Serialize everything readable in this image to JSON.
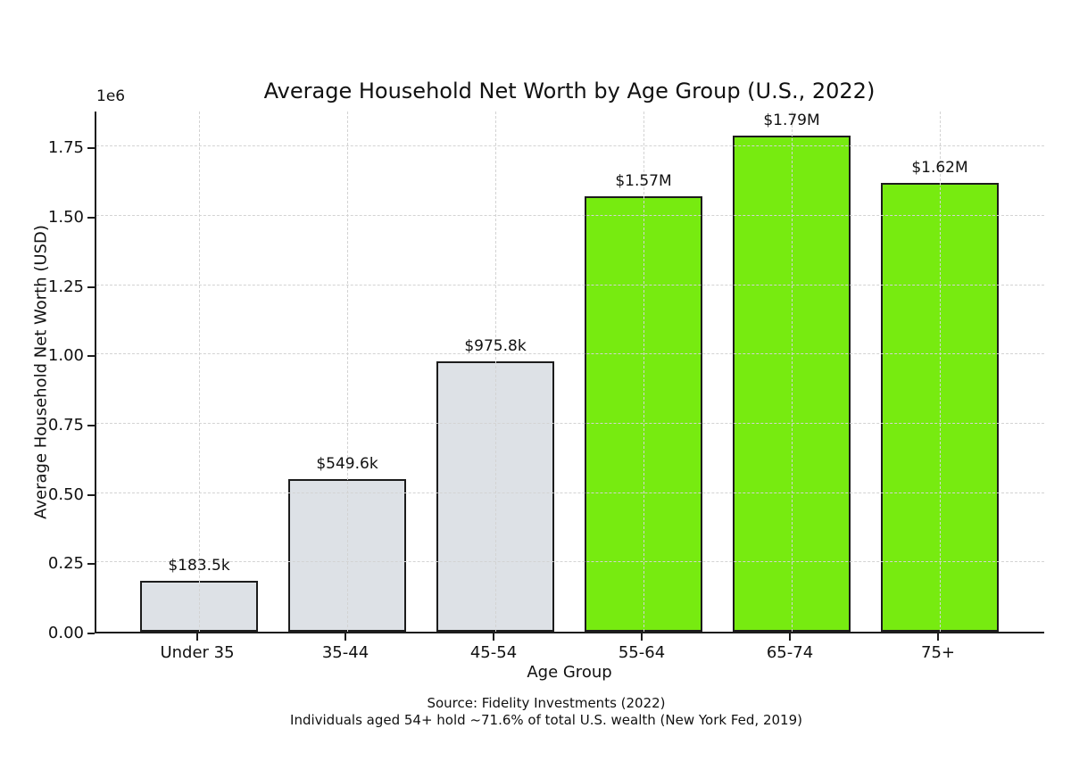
{
  "chart_data": {
    "type": "bar",
    "title": "Average Household Net Worth by Age Group (U.S., 2022)",
    "xlabel": "Age Group",
    "ylabel": "Average Household Net Worth (USD)",
    "y_offset_text": "1e6",
    "categories": [
      "Under 35",
      "35-44",
      "45-54",
      "55-64",
      "65-74",
      "75+"
    ],
    "values": [
      183500,
      549600,
      975800,
      1570000,
      1790000,
      1620000
    ],
    "bar_labels": [
      "$183.5k",
      "$549.6k",
      "$975.8k",
      "$1.57M",
      "$1.79M",
      "$1.62M"
    ],
    "bar_colors": [
      "#dde1e6",
      "#dde1e6",
      "#dde1e6",
      "#77eb10",
      "#77eb10",
      "#77eb10"
    ],
    "edge_color": "#1c1c1c",
    "grid": true,
    "grid_style": "dashed",
    "grid_color": "#d3d3d3",
    "legend": false,
    "ylim": [
      0,
      1877000
    ],
    "yticks": [
      0,
      250000,
      500000,
      750000,
      1000000,
      1250000,
      1500000,
      1750000
    ],
    "ytick_labels": [
      "0.00",
      "0.25",
      "0.50",
      "0.75",
      "1.00",
      "1.25",
      "1.50",
      "1.75"
    ],
    "annotations": {
      "source": "Source: Fidelity Investments (2022)",
      "note": "Individuals aged 54+ hold ~71.6% of total U.S. wealth (New York Fed, 2019)"
    }
  }
}
